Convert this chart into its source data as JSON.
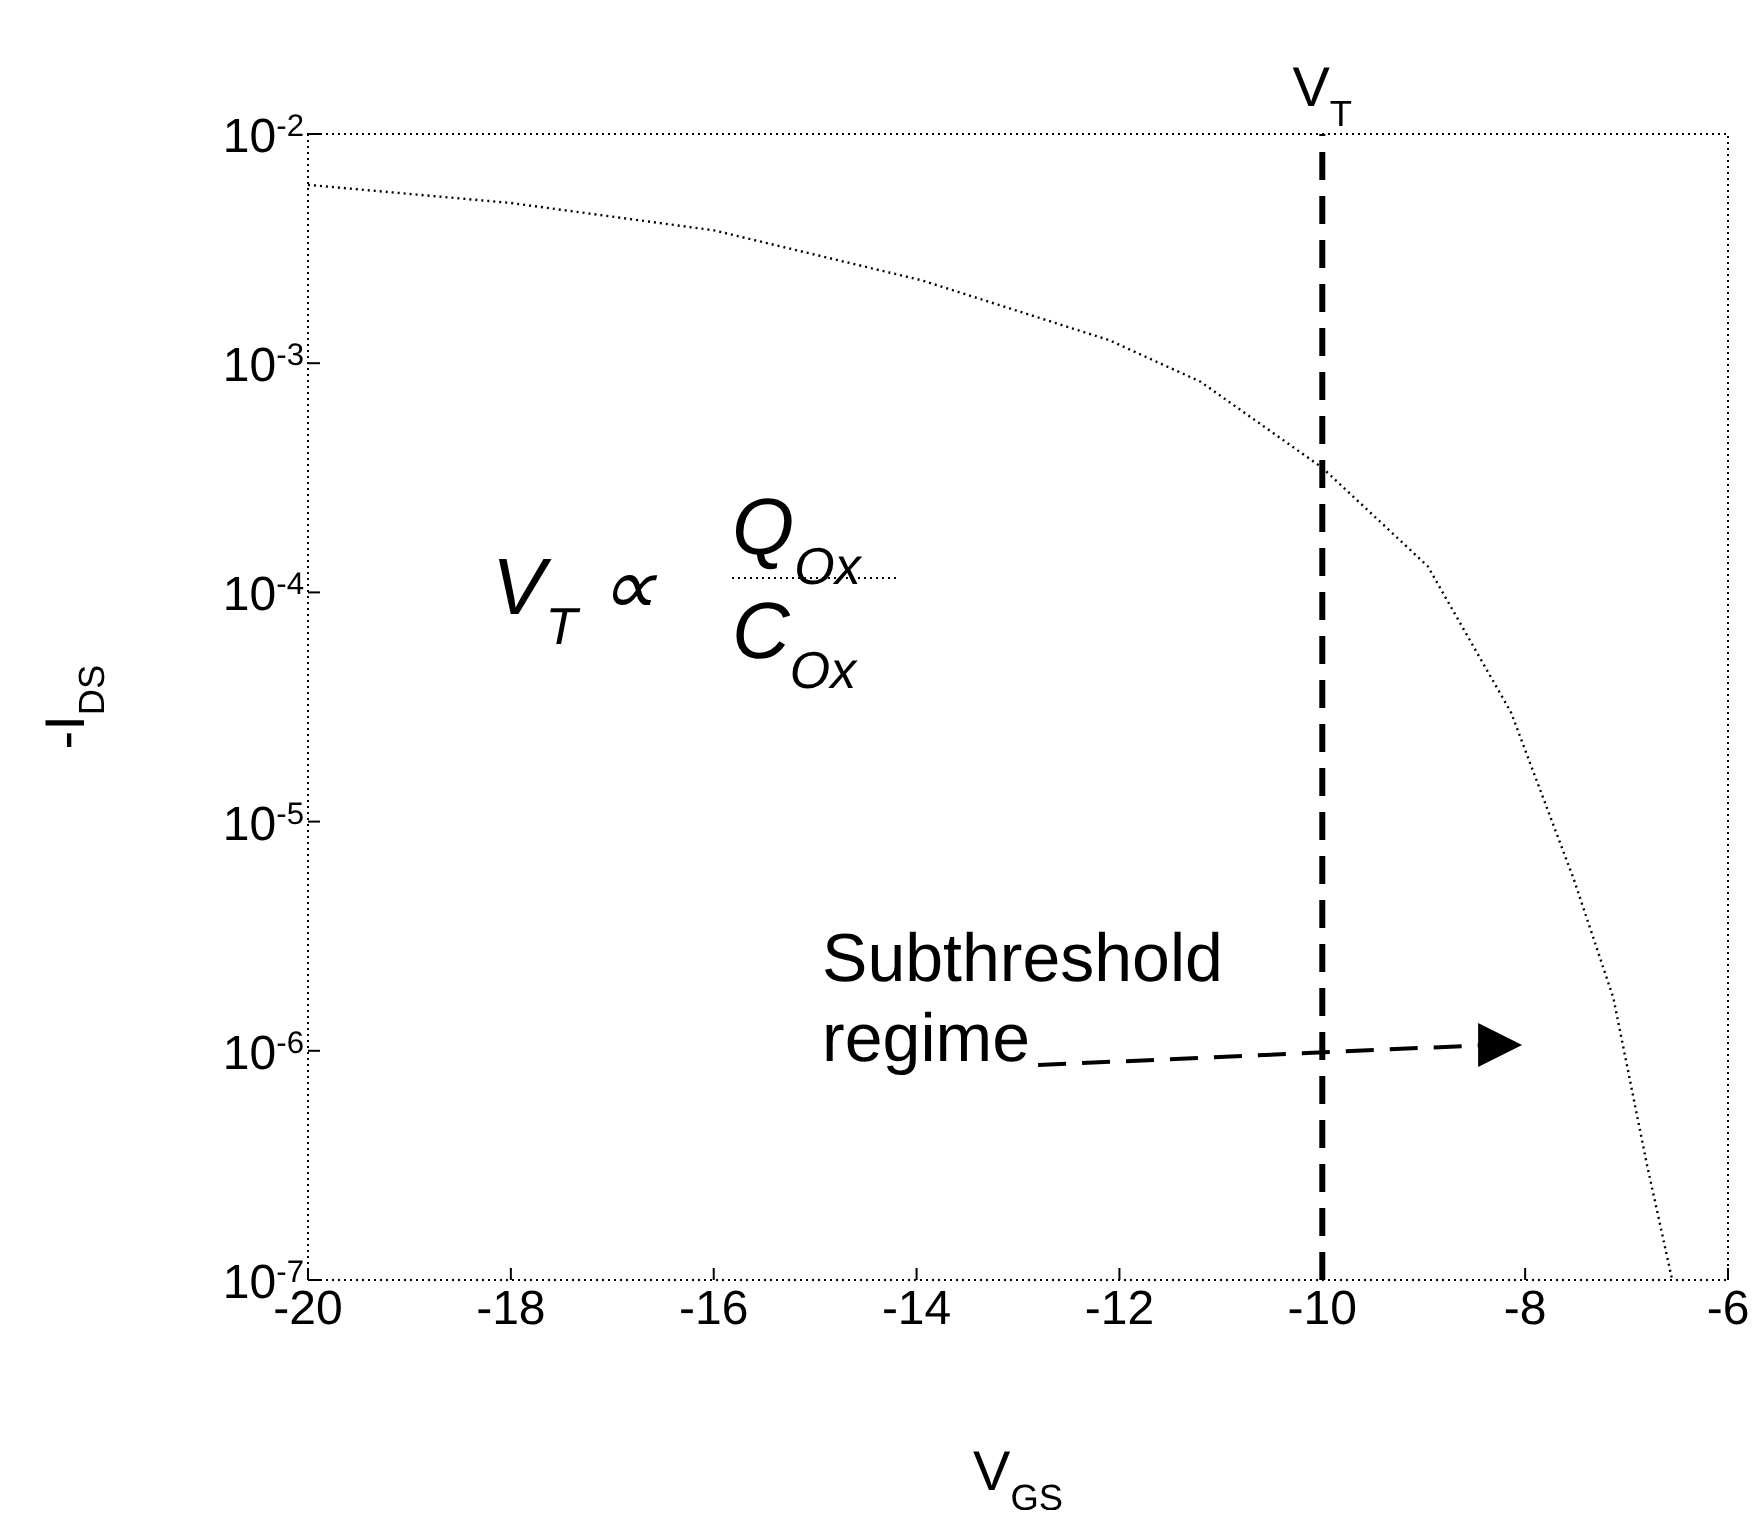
{
  "chart_data": {
    "type": "line",
    "xlabel": "V$_{GS}$",
    "ylabel": "-I$_{DS}$",
    "log": "y",
    "line_style": "dotted",
    "marker": "none",
    "x": [
      -20,
      -18,
      -16,
      -13.95,
      -12.1,
      -11.2,
      -10,
      -8.96,
      -8.14,
      -7.52,
      -7.13,
      -6.8,
      -6.55
    ],
    "series": [
      {
        "color": "#000000",
        "values": [
          0.006,
          0.005,
          0.0038,
          0.0023,
          0.00126,
          0.00083,
          0.00035,
          0.00013,
          3e-05,
          5.6e-06,
          1.7e-06,
          3.2e-07,
          1e-07
        ]
      }
    ],
    "xlim": [
      -20,
      -6
    ],
    "xticks": [
      -20,
      -18,
      -16,
      -14,
      -12,
      -10,
      -8,
      -6
    ],
    "ylim": [
      1e-07,
      0.01
    ],
    "yticks": [
      {
        "value": 1e-07,
        "label": "10$^{-7}$"
      },
      {
        "value": 1e-06,
        "label": "10$^{-6}$"
      },
      {
        "value": 1e-05,
        "label": "10$^{-5}$"
      },
      {
        "value": 0.0001,
        "label": "10$^{-4}$"
      },
      {
        "value": 0.001,
        "label": "10$^{-3}$"
      },
      {
        "value": 0.01,
        "label": "10$^{-2}$"
      }
    ],
    "ref_lines": [
      {
        "axis": "x",
        "value": -10,
        "label": "V$_{T}$",
        "color": "#000000",
        "line_style": "dashed"
      }
    ],
    "annotations": [
      "V$_{T}$ ∝",
      "Q$_{Ox}$",
      "C$_{Ox}$",
      "Subthreshold regime"
    ]
  }
}
